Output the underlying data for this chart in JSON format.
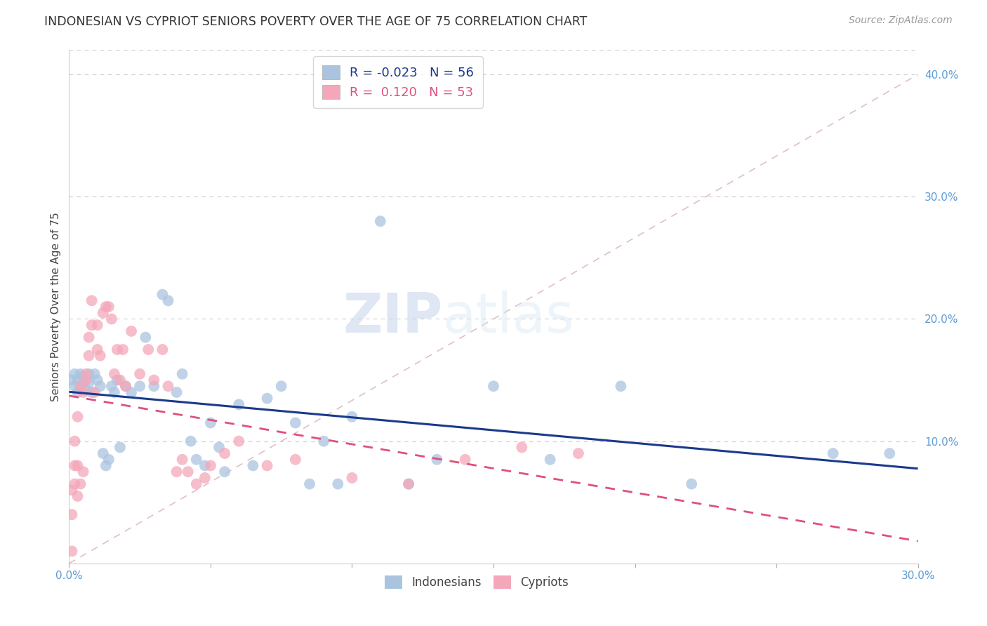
{
  "title": "INDONESIAN VS CYPRIOT SENIORS POVERTY OVER THE AGE OF 75 CORRELATION CHART",
  "source": "Source: ZipAtlas.com",
  "ylabel": "Seniors Poverty Over the Age of 75",
  "xlim": [
    0.0,
    0.3
  ],
  "ylim": [
    0.0,
    0.42
  ],
  "indonesian_R": "-0.023",
  "indonesian_N": "56",
  "cypriot_R": "0.120",
  "cypriot_N": "53",
  "indonesian_color": "#aac4e0",
  "cypriot_color": "#f4a7b9",
  "indonesian_line_color": "#1a3a8c",
  "cypriot_line_color": "#e0507a",
  "watermark_zip": "ZIP",
  "watermark_atlas": "atlas",
  "indonesian_x": [
    0.001,
    0.002,
    0.002,
    0.003,
    0.003,
    0.004,
    0.004,
    0.005,
    0.005,
    0.006,
    0.007,
    0.007,
    0.008,
    0.009,
    0.01,
    0.011,
    0.012,
    0.013,
    0.014,
    0.015,
    0.016,
    0.017,
    0.018,
    0.02,
    0.022,
    0.025,
    0.027,
    0.03,
    0.033,
    0.035,
    0.038,
    0.04,
    0.043,
    0.045,
    0.048,
    0.05,
    0.053,
    0.055,
    0.06,
    0.065,
    0.07,
    0.075,
    0.08,
    0.085,
    0.09,
    0.095,
    0.1,
    0.11,
    0.12,
    0.13,
    0.15,
    0.17,
    0.195,
    0.22,
    0.27,
    0.29
  ],
  "indonesian_y": [
    0.15,
    0.145,
    0.155,
    0.14,
    0.15,
    0.145,
    0.155,
    0.148,
    0.153,
    0.142,
    0.155,
    0.148,
    0.14,
    0.155,
    0.15,
    0.145,
    0.09,
    0.08,
    0.085,
    0.145,
    0.14,
    0.15,
    0.095,
    0.145,
    0.14,
    0.145,
    0.185,
    0.145,
    0.22,
    0.215,
    0.14,
    0.155,
    0.1,
    0.085,
    0.08,
    0.115,
    0.095,
    0.075,
    0.13,
    0.08,
    0.135,
    0.145,
    0.115,
    0.065,
    0.1,
    0.065,
    0.12,
    0.28,
    0.065,
    0.085,
    0.145,
    0.085,
    0.145,
    0.065,
    0.09,
    0.09
  ],
  "cypriot_x": [
    0.001,
    0.001,
    0.001,
    0.002,
    0.002,
    0.002,
    0.003,
    0.003,
    0.003,
    0.004,
    0.004,
    0.005,
    0.005,
    0.006,
    0.006,
    0.007,
    0.007,
    0.008,
    0.008,
    0.009,
    0.01,
    0.01,
    0.011,
    0.012,
    0.013,
    0.014,
    0.015,
    0.016,
    0.017,
    0.018,
    0.019,
    0.02,
    0.022,
    0.025,
    0.028,
    0.03,
    0.033,
    0.035,
    0.038,
    0.04,
    0.042,
    0.045,
    0.048,
    0.05,
    0.055,
    0.06,
    0.07,
    0.08,
    0.1,
    0.12,
    0.14,
    0.16,
    0.18
  ],
  "cypriot_y": [
    0.01,
    0.04,
    0.06,
    0.065,
    0.08,
    0.1,
    0.055,
    0.08,
    0.12,
    0.065,
    0.145,
    0.075,
    0.14,
    0.15,
    0.155,
    0.17,
    0.185,
    0.195,
    0.215,
    0.14,
    0.175,
    0.195,
    0.17,
    0.205,
    0.21,
    0.21,
    0.2,
    0.155,
    0.175,
    0.15,
    0.175,
    0.145,
    0.19,
    0.155,
    0.175,
    0.15,
    0.175,
    0.145,
    0.075,
    0.085,
    0.075,
    0.065,
    0.07,
    0.08,
    0.09,
    0.1,
    0.08,
    0.085,
    0.07,
    0.065,
    0.085,
    0.095,
    0.09
  ]
}
